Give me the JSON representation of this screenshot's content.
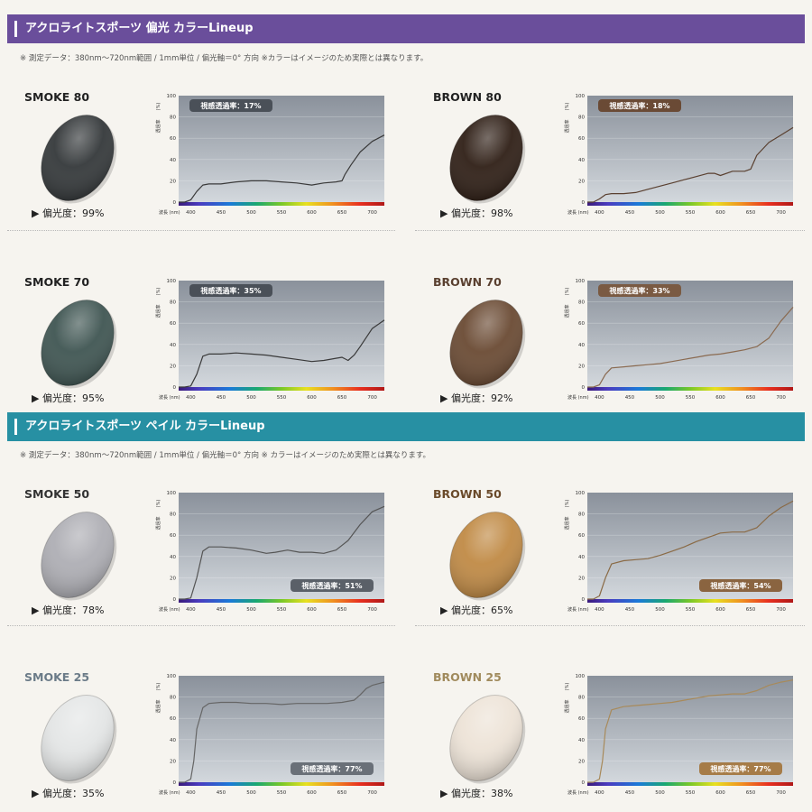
{
  "sections": [
    {
      "title": "アクロライトスポーツ 偏光 カラーLineup",
      "note": "※ 測定データ：380nm～720nm範囲 / 1mm単位 / 偏光軸＝0°  方向      ※カラーはイメージのため実際とは異なります。",
      "color": "#6a4e9b"
    },
    {
      "title": "アクロライトスポーツ ペイル カラーLineup",
      "note": "※ 測定データ：380nm～720nm範囲 / 1mm単位 / 偏光軸＝0°  方向    ※ カラーはイメージのため実際とは異なります。",
      "color": "#2790a3"
    }
  ],
  "chart_axis": {
    "y_unit": "(%)",
    "y_title": "透過率",
    "x_label": "波長 (nm)"
  },
  "lenses": [
    {
      "name": "SMOKE 80",
      "polarization": "▶ 偏光度：99%",
      "transmission_label": "視感透過率：17%",
      "lens_color": "#34383a",
      "title_color": "#222222",
      "curve_color": "#3a3a3a",
      "badge_color": "#4a5058"
    },
    {
      "name": "BROWN 80",
      "polarization": "▶ 偏光度：98%",
      "transmission_label": "視感透過率：18%",
      "lens_color": "#2f1f16",
      "title_color": "#222222",
      "curve_color": "#5a4030",
      "badge_color": "#6a4a35"
    },
    {
      "name": "SMOKE 70",
      "polarization": "▶ 偏光度：95%",
      "transmission_label": "視感透過率：35%",
      "lens_color": "#3f5552",
      "title_color": "#222222",
      "curve_color": "#3a3a3a",
      "badge_color": "#4a5058"
    },
    {
      "name": "BROWN 70",
      "polarization": "▶ 偏光度：92%",
      "transmission_label": "視感透過率：33%",
      "lens_color": "#6a4a33",
      "title_color": "#5a4030",
      "curve_color": "#8a6a50",
      "badge_color": "#7a5a42"
    },
    {
      "name": "SMOKE 50",
      "polarization": "▶ 偏光度：78%",
      "transmission_label": "視感透過率：51%",
      "lens_color": "#aeaeb4",
      "title_color": "#333333",
      "curve_color": "#555555",
      "badge_color": "#5a6068"
    },
    {
      "name": "BROWN 50",
      "polarization": "▶ 偏光度：65%",
      "transmission_label": "視感透過率：54%",
      "lens_color": "#c08a45",
      "title_color": "#6a4a2a",
      "curve_color": "#8a6a45",
      "badge_color": "#8a6440"
    },
    {
      "name": "SMOKE 25",
      "polarization": "▶ 偏光度：35%",
      "transmission_label": "視感透過率：77%",
      "lens_color": "#e4e6e6",
      "title_color": "#6b7b88",
      "curve_color": "#666666",
      "badge_color": "#6a7078"
    },
    {
      "name": "BROWN 25",
      "polarization": "▶ 偏光度：38%",
      "transmission_label": "視感透過率：77%",
      "lens_color": "#ede3d7",
      "title_color": "#a08a5c",
      "curve_color": "#a88a5a",
      "badge_color": "#a67c48"
    }
  ],
  "chart_data": [
    {
      "type": "line",
      "title": "SMOKE 80",
      "xlabel": "波長 (nm)",
      "ylabel": "透過率 (%)",
      "xlim": [
        380,
        720
      ],
      "ylim": [
        0,
        100
      ],
      "x_ticks": [
        400,
        450,
        500,
        550,
        600,
        650,
        700
      ],
      "y_ticks": [
        0,
        20,
        40,
        60,
        80,
        100
      ],
      "annotation": "視感透過率：17%",
      "x": [
        380,
        390,
        400,
        410,
        420,
        430,
        450,
        475,
        500,
        525,
        550,
        575,
        600,
        620,
        640,
        650,
        655,
        665,
        680,
        700,
        720
      ],
      "y": [
        0,
        0,
        2,
        10,
        16,
        17,
        17,
        19,
        20,
        20,
        19,
        18,
        16,
        18,
        19,
        20,
        26,
        35,
        47,
        57,
        63
      ]
    },
    {
      "type": "line",
      "title": "BROWN 80",
      "xlabel": "波長 (nm)",
      "ylabel": "透過率 (%)",
      "xlim": [
        380,
        720
      ],
      "ylim": [
        0,
        100
      ],
      "x_ticks": [
        400,
        450,
        500,
        550,
        600,
        650,
        700
      ],
      "y_ticks": [
        0,
        20,
        40,
        60,
        80,
        100
      ],
      "annotation": "視感透過率：18%",
      "x": [
        380,
        390,
        400,
        410,
        420,
        440,
        460,
        480,
        500,
        520,
        540,
        560,
        580,
        590,
        600,
        620,
        640,
        650,
        660,
        680,
        700,
        720
      ],
      "y": [
        0,
        0,
        3,
        7,
        8,
        8,
        9,
        12,
        15,
        18,
        21,
        24,
        27,
        27,
        25,
        29,
        29,
        31,
        44,
        56,
        63,
        70
      ]
    },
    {
      "type": "line",
      "title": "SMOKE 70",
      "xlabel": "波長 (nm)",
      "ylabel": "透過率 (%)",
      "xlim": [
        380,
        720
      ],
      "ylim": [
        0,
        100
      ],
      "x_ticks": [
        400,
        450,
        500,
        550,
        600,
        650,
        700
      ],
      "y_ticks": [
        0,
        20,
        40,
        60,
        80,
        100
      ],
      "annotation": "視感透過率：35%",
      "x": [
        380,
        390,
        400,
        410,
        420,
        430,
        450,
        475,
        500,
        525,
        550,
        575,
        600,
        620,
        640,
        650,
        660,
        670,
        680,
        700,
        720
      ],
      "y": [
        0,
        0,
        1,
        12,
        29,
        31,
        31,
        32,
        31,
        30,
        28,
        26,
        24,
        25,
        27,
        28,
        25,
        30,
        38,
        55,
        63
      ]
    },
    {
      "type": "line",
      "title": "BROWN 70",
      "xlabel": "波長 (nm)",
      "ylabel": "透過率 (%)",
      "xlim": [
        380,
        720
      ],
      "ylim": [
        0,
        100
      ],
      "x_ticks": [
        400,
        450,
        500,
        550,
        600,
        650,
        700
      ],
      "y_ticks": [
        0,
        20,
        40,
        60,
        80,
        100
      ],
      "annotation": "視感透過率：33%",
      "x": [
        380,
        390,
        400,
        410,
        420,
        440,
        460,
        480,
        500,
        520,
        540,
        560,
        580,
        600,
        620,
        640,
        660,
        680,
        700,
        720
      ],
      "y": [
        0,
        0,
        2,
        12,
        18,
        19,
        20,
        21,
        22,
        24,
        26,
        28,
        30,
        31,
        33,
        35,
        38,
        46,
        62,
        75
      ]
    },
    {
      "type": "line",
      "title": "SMOKE 50",
      "xlabel": "波長 (nm)",
      "ylabel": "透過率 (%)",
      "xlim": [
        380,
        720
      ],
      "ylim": [
        0,
        100
      ],
      "x_ticks": [
        400,
        450,
        500,
        550,
        600,
        650,
        700
      ],
      "y_ticks": [
        0,
        20,
        40,
        60,
        80,
        100
      ],
      "annotation": "視感透過率：51%",
      "x": [
        380,
        390,
        400,
        410,
        420,
        430,
        450,
        475,
        500,
        525,
        540,
        560,
        580,
        600,
        620,
        640,
        660,
        680,
        700,
        720
      ],
      "y": [
        0,
        0,
        1,
        20,
        45,
        49,
        49,
        48,
        46,
        43,
        44,
        46,
        44,
        44,
        43,
        46,
        55,
        70,
        82,
        87
      ]
    },
    {
      "type": "line",
      "title": "BROWN 50",
      "xlabel": "波長 (nm)",
      "ylabel": "透過率 (%)",
      "xlim": [
        380,
        720
      ],
      "ylim": [
        0,
        100
      ],
      "x_ticks": [
        400,
        450,
        500,
        550,
        600,
        650,
        700
      ],
      "y_ticks": [
        0,
        20,
        40,
        60,
        80,
        100
      ],
      "annotation": "視感透過率：54%",
      "x": [
        380,
        390,
        400,
        410,
        420,
        440,
        460,
        480,
        500,
        520,
        540,
        560,
        580,
        600,
        620,
        640,
        660,
        680,
        700,
        720
      ],
      "y": [
        0,
        0,
        3,
        20,
        33,
        36,
        37,
        38,
        41,
        45,
        49,
        54,
        58,
        62,
        63,
        63,
        67,
        78,
        86,
        92
      ]
    },
    {
      "type": "line",
      "title": "SMOKE 25",
      "xlabel": "波長 (nm)",
      "ylabel": "透過率 (%)",
      "xlim": [
        380,
        720
      ],
      "ylim": [
        0,
        100
      ],
      "x_ticks": [
        400,
        450,
        500,
        550,
        600,
        650,
        700
      ],
      "y_ticks": [
        0,
        20,
        40,
        60,
        80,
        100
      ],
      "annotation": "視感透過率：77%",
      "x": [
        380,
        390,
        400,
        405,
        410,
        420,
        430,
        450,
        475,
        500,
        525,
        550,
        575,
        600,
        625,
        650,
        670,
        680,
        690,
        700,
        720
      ],
      "y": [
        0,
        0,
        3,
        20,
        50,
        70,
        74,
        75,
        75,
        74,
        74,
        73,
        74,
        74,
        74,
        75,
        77,
        82,
        88,
        91,
        94
      ]
    },
    {
      "type": "line",
      "title": "BROWN 25",
      "xlabel": "波長 (nm)",
      "ylabel": "透過率 (%)",
      "xlim": [
        380,
        720
      ],
      "ylim": [
        0,
        100
      ],
      "x_ticks": [
        400,
        450,
        500,
        550,
        600,
        650,
        700
      ],
      "y_ticks": [
        0,
        20,
        40,
        60,
        80,
        100
      ],
      "annotation": "視感透過率：77%",
      "x": [
        380,
        390,
        400,
        405,
        410,
        420,
        440,
        460,
        480,
        500,
        520,
        540,
        560,
        580,
        600,
        620,
        640,
        660,
        680,
        700,
        720
      ],
      "y": [
        0,
        0,
        3,
        20,
        50,
        68,
        71,
        72,
        73,
        74,
        75,
        77,
        79,
        81,
        82,
        83,
        83,
        86,
        91,
        94,
        96
      ]
    }
  ]
}
